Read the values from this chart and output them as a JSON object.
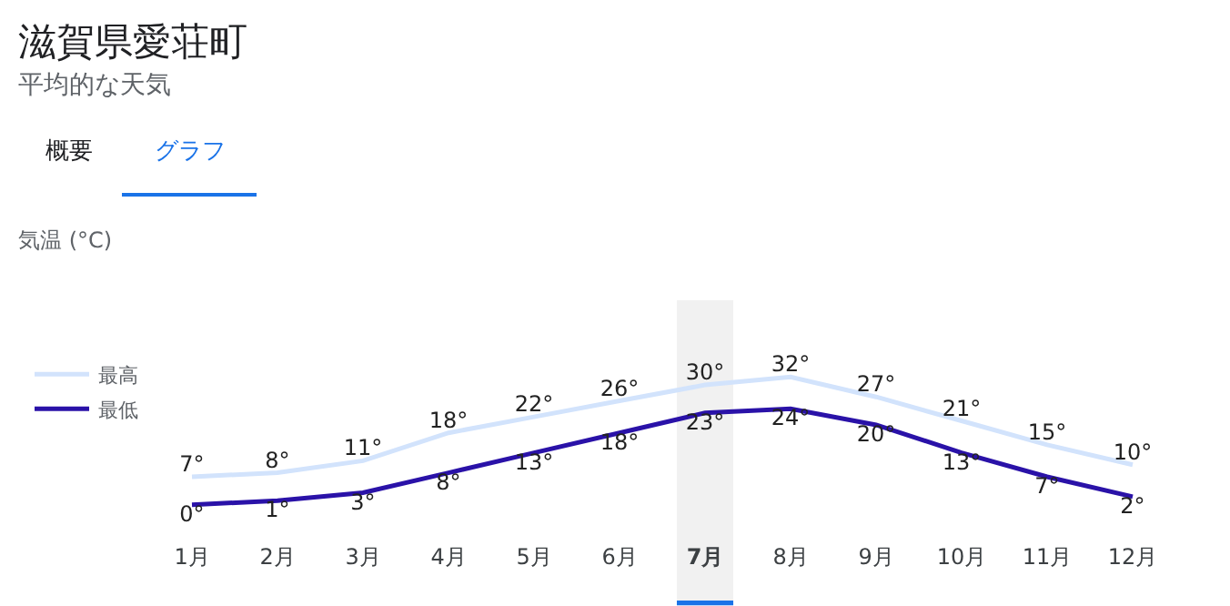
{
  "chart_data": {
    "type": "line",
    "title": "滋賀県愛荘町",
    "subtitle": "平均的な天気",
    "annotations": [
      "概要",
      "グラフ",
      "気温 (°C)"
    ],
    "categories": [
      "1月",
      "2月",
      "3月",
      "4月",
      "5月",
      "6月",
      "7月",
      "8月",
      "9月",
      "10月",
      "11月",
      "12月"
    ],
    "series": [
      {
        "name": "最高",
        "color": "#d2e3fc",
        "values": [
          7,
          8,
          11,
          18,
          22,
          26,
          30,
          32,
          27,
          21,
          15,
          10
        ],
        "value_labels": [
          "7°",
          "8°",
          "11°",
          "18°",
          "22°",
          "26°",
          "30°",
          "32°",
          "27°",
          "21°",
          "15°",
          "10°"
        ]
      },
      {
        "name": "最低",
        "color": "#2a12a8",
        "values": [
          0,
          1,
          3,
          8,
          13,
          18,
          23,
          24,
          20,
          13,
          7,
          2
        ],
        "value_labels": [
          "0°",
          "1°",
          "3°",
          "8°",
          "13°",
          "18°",
          "23°",
          "24°",
          "20°",
          "13°",
          "7°",
          "2°"
        ]
      }
    ],
    "bands": [
      {
        "axis": "x",
        "from": "7月",
        "to": "7月",
        "color": "#f1f1f1"
      }
    ],
    "grid": false,
    "legend": "left",
    "marker": "none",
    "line_style": "solid"
  }
}
